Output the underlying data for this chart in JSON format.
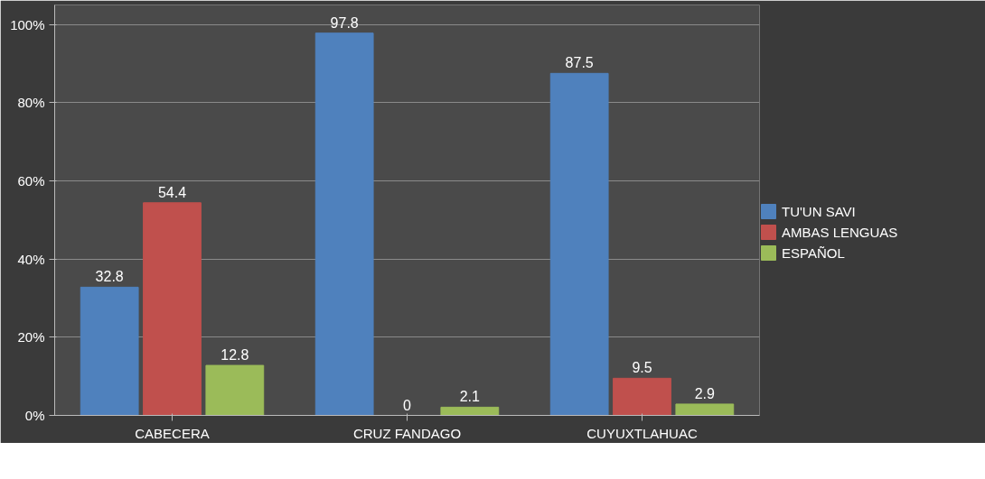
{
  "chart_data": {
    "type": "bar",
    "categories": [
      "CABECERA",
      "CRUZ FANDAGO",
      "CUYUXTLAHUAC"
    ],
    "series": [
      {
        "name": "TU'UN SAVI",
        "color": "#4f81bd",
        "values": [
          32.8,
          97.8,
          87.5
        ]
      },
      {
        "name": "AMBAS LENGUAS",
        "color": "#c0504d",
        "values": [
          54.4,
          0,
          9.5
        ]
      },
      {
        "name": "ESPAÑOL",
        "color": "#9bbb59",
        "values": [
          12.8,
          2.1,
          2.9
        ]
      }
    ],
    "ylim": [
      0,
      105
    ],
    "yticks": [
      {
        "value": 0,
        "label": "0%"
      },
      {
        "value": 20,
        "label": "20%"
      },
      {
        "value": 40,
        "label": "40%"
      },
      {
        "value": 60,
        "label": "60%"
      },
      {
        "value": 80,
        "label": "80%"
      },
      {
        "value": 100,
        "label": "100%"
      }
    ],
    "grid": "y",
    "legend": "right",
    "data_labels": true
  }
}
